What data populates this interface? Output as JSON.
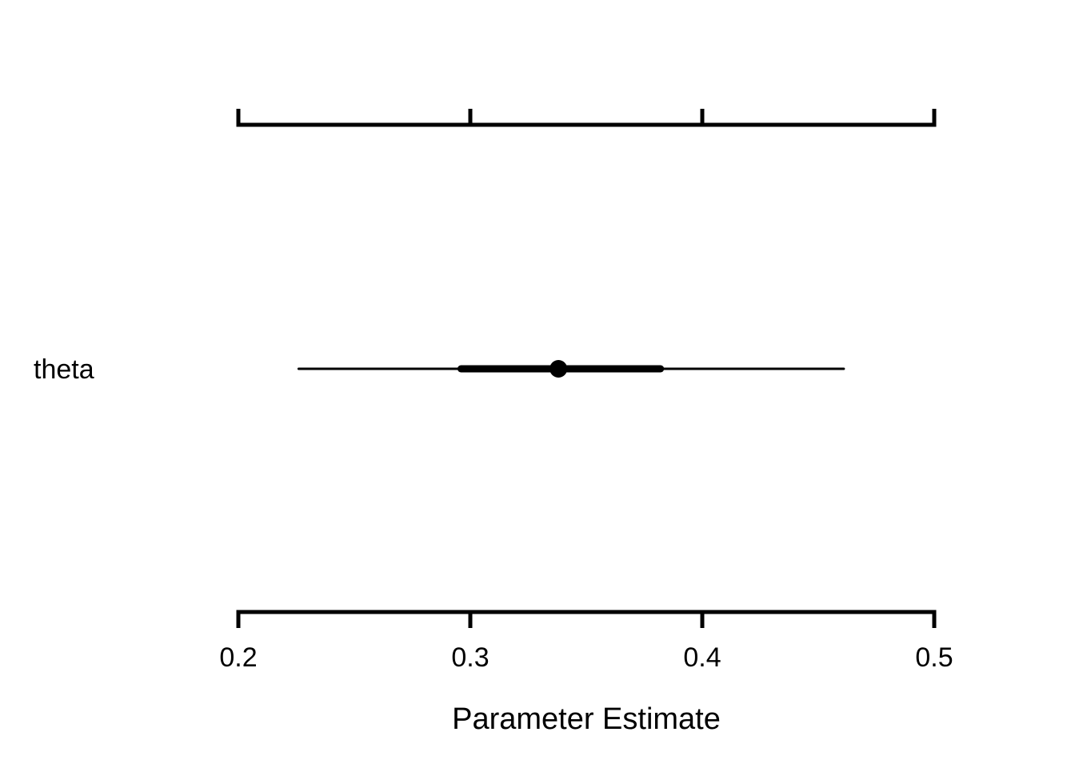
{
  "chart_data": {
    "type": "interval",
    "title": "",
    "xlabel": "Parameter Estimate",
    "ylabel": "",
    "xlim": [
      0.2,
      0.5
    ],
    "ticks": [
      "0.2",
      "0.3",
      "0.4",
      "0.5"
    ],
    "top_axis_tick_labels": false,
    "grid": false,
    "legend": "none",
    "parameters": [
      {
        "name": "theta",
        "estimate": 0.338,
        "inner_interval": [
          0.296,
          0.382
        ],
        "outer_interval": [
          0.226,
          0.461
        ]
      }
    ]
  }
}
